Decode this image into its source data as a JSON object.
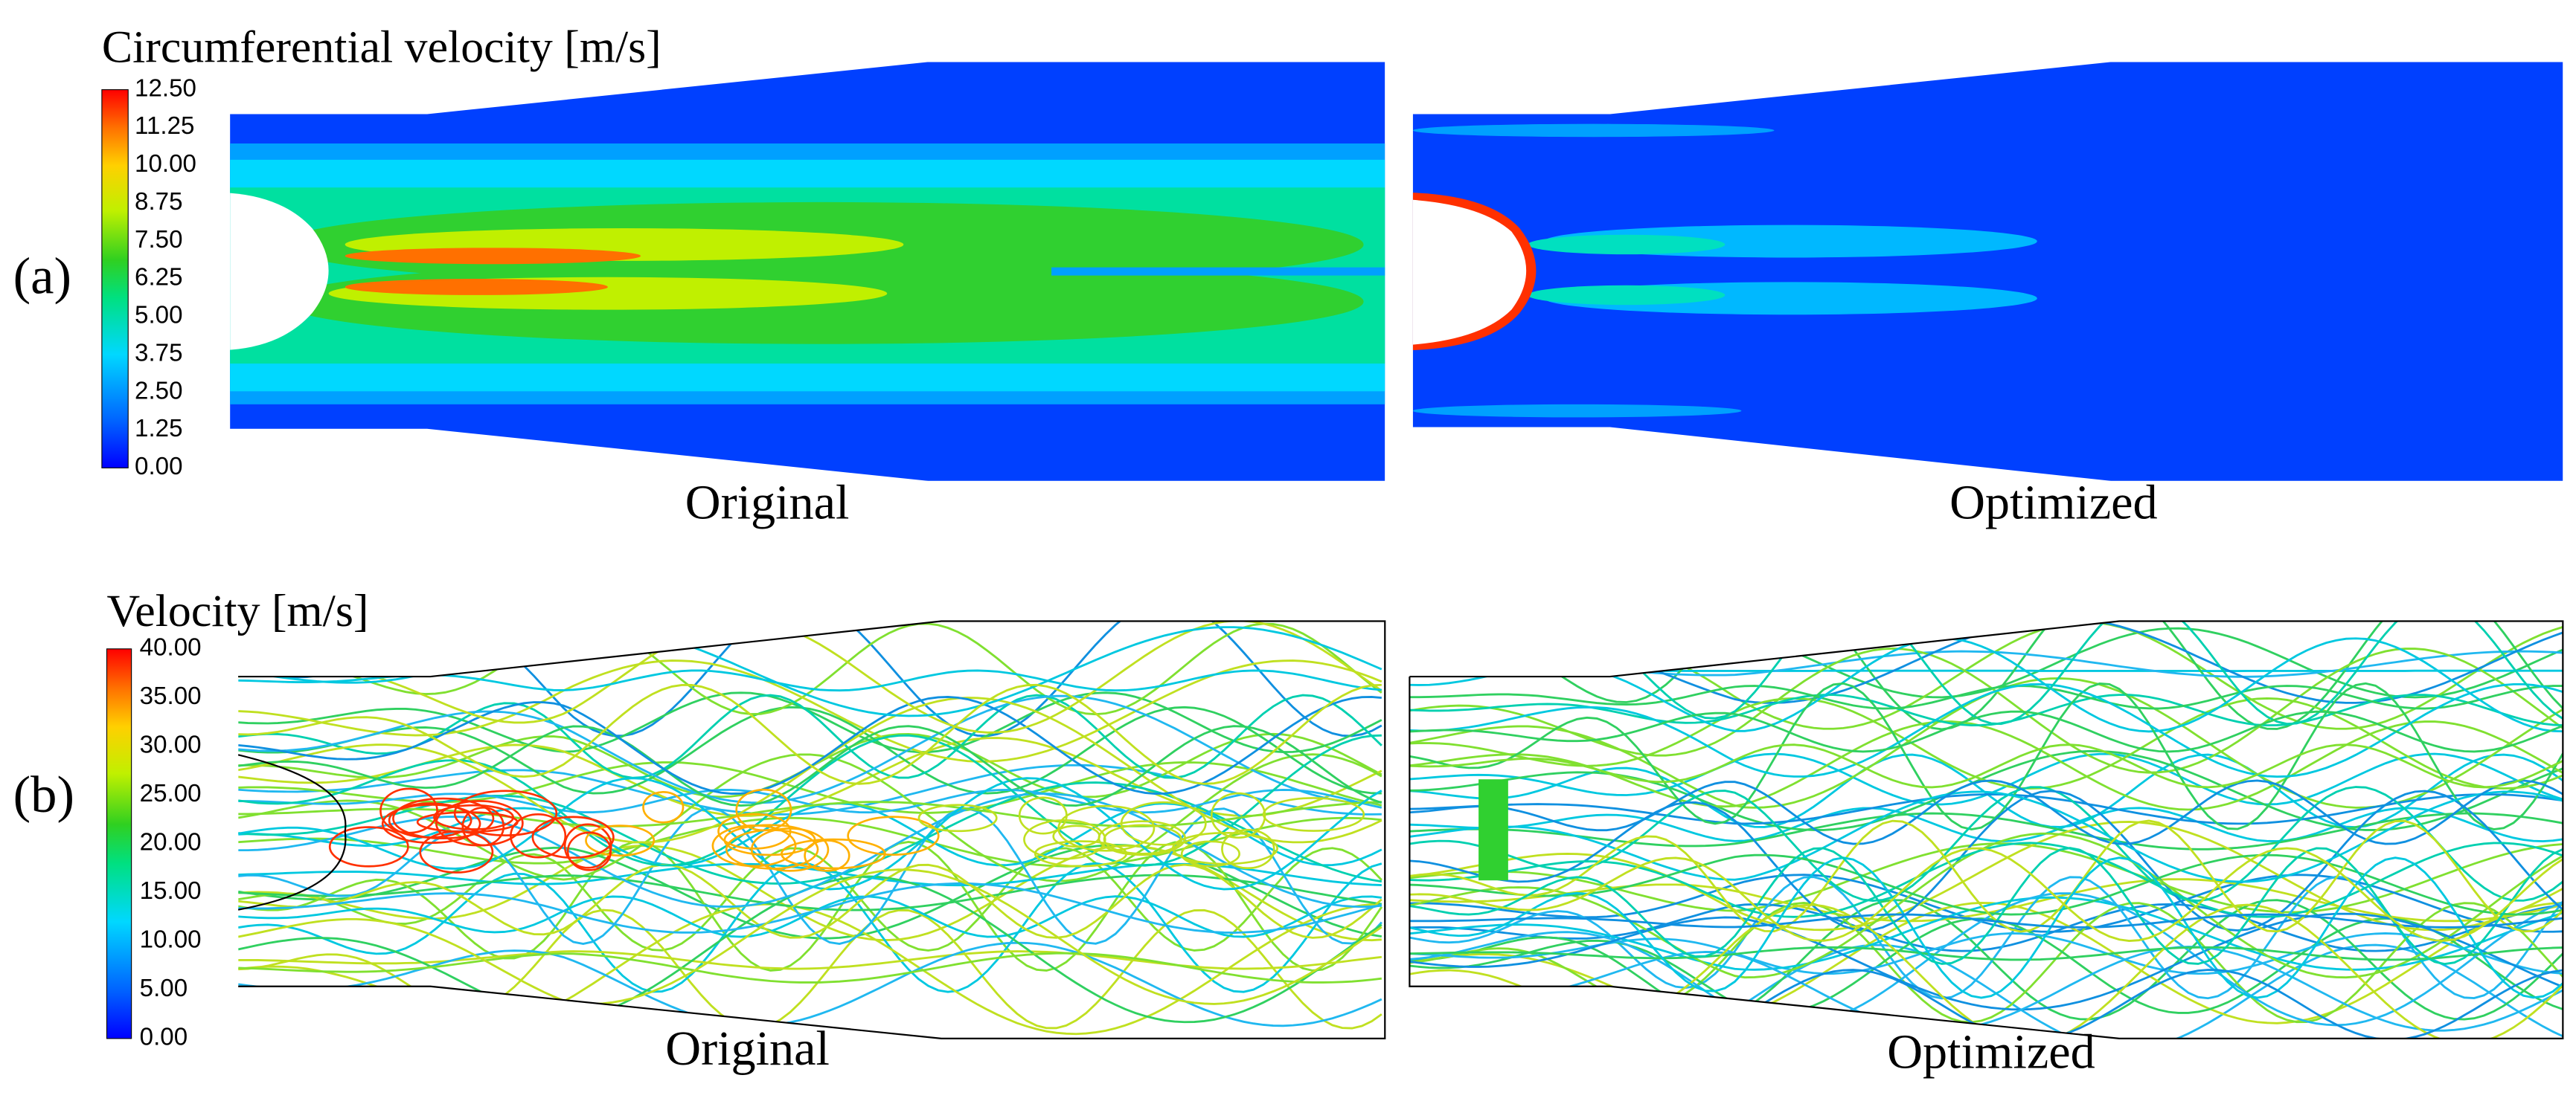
{
  "panels": [
    {
      "label": "(a)",
      "legend": {
        "title": "Circumferential velocity [m/s]",
        "ticks": [
          "12.50",
          "11.25",
          "10.00",
          "8.75",
          "7.50",
          "6.25",
          "5.00",
          "3.75",
          "2.50",
          "1.25",
          "0.00"
        ]
      },
      "views": [
        "Original",
        "Optimized"
      ]
    },
    {
      "label": "(b)",
      "legend": {
        "title": "Velocity [m/s]",
        "ticks": [
          "40.00",
          "35.00",
          "30.00",
          "25.00",
          "20.00",
          "15.00",
          "10.00",
          "5.00",
          "0.00"
        ]
      },
      "views": [
        "Original",
        "Optimized"
      ]
    }
  ]
}
